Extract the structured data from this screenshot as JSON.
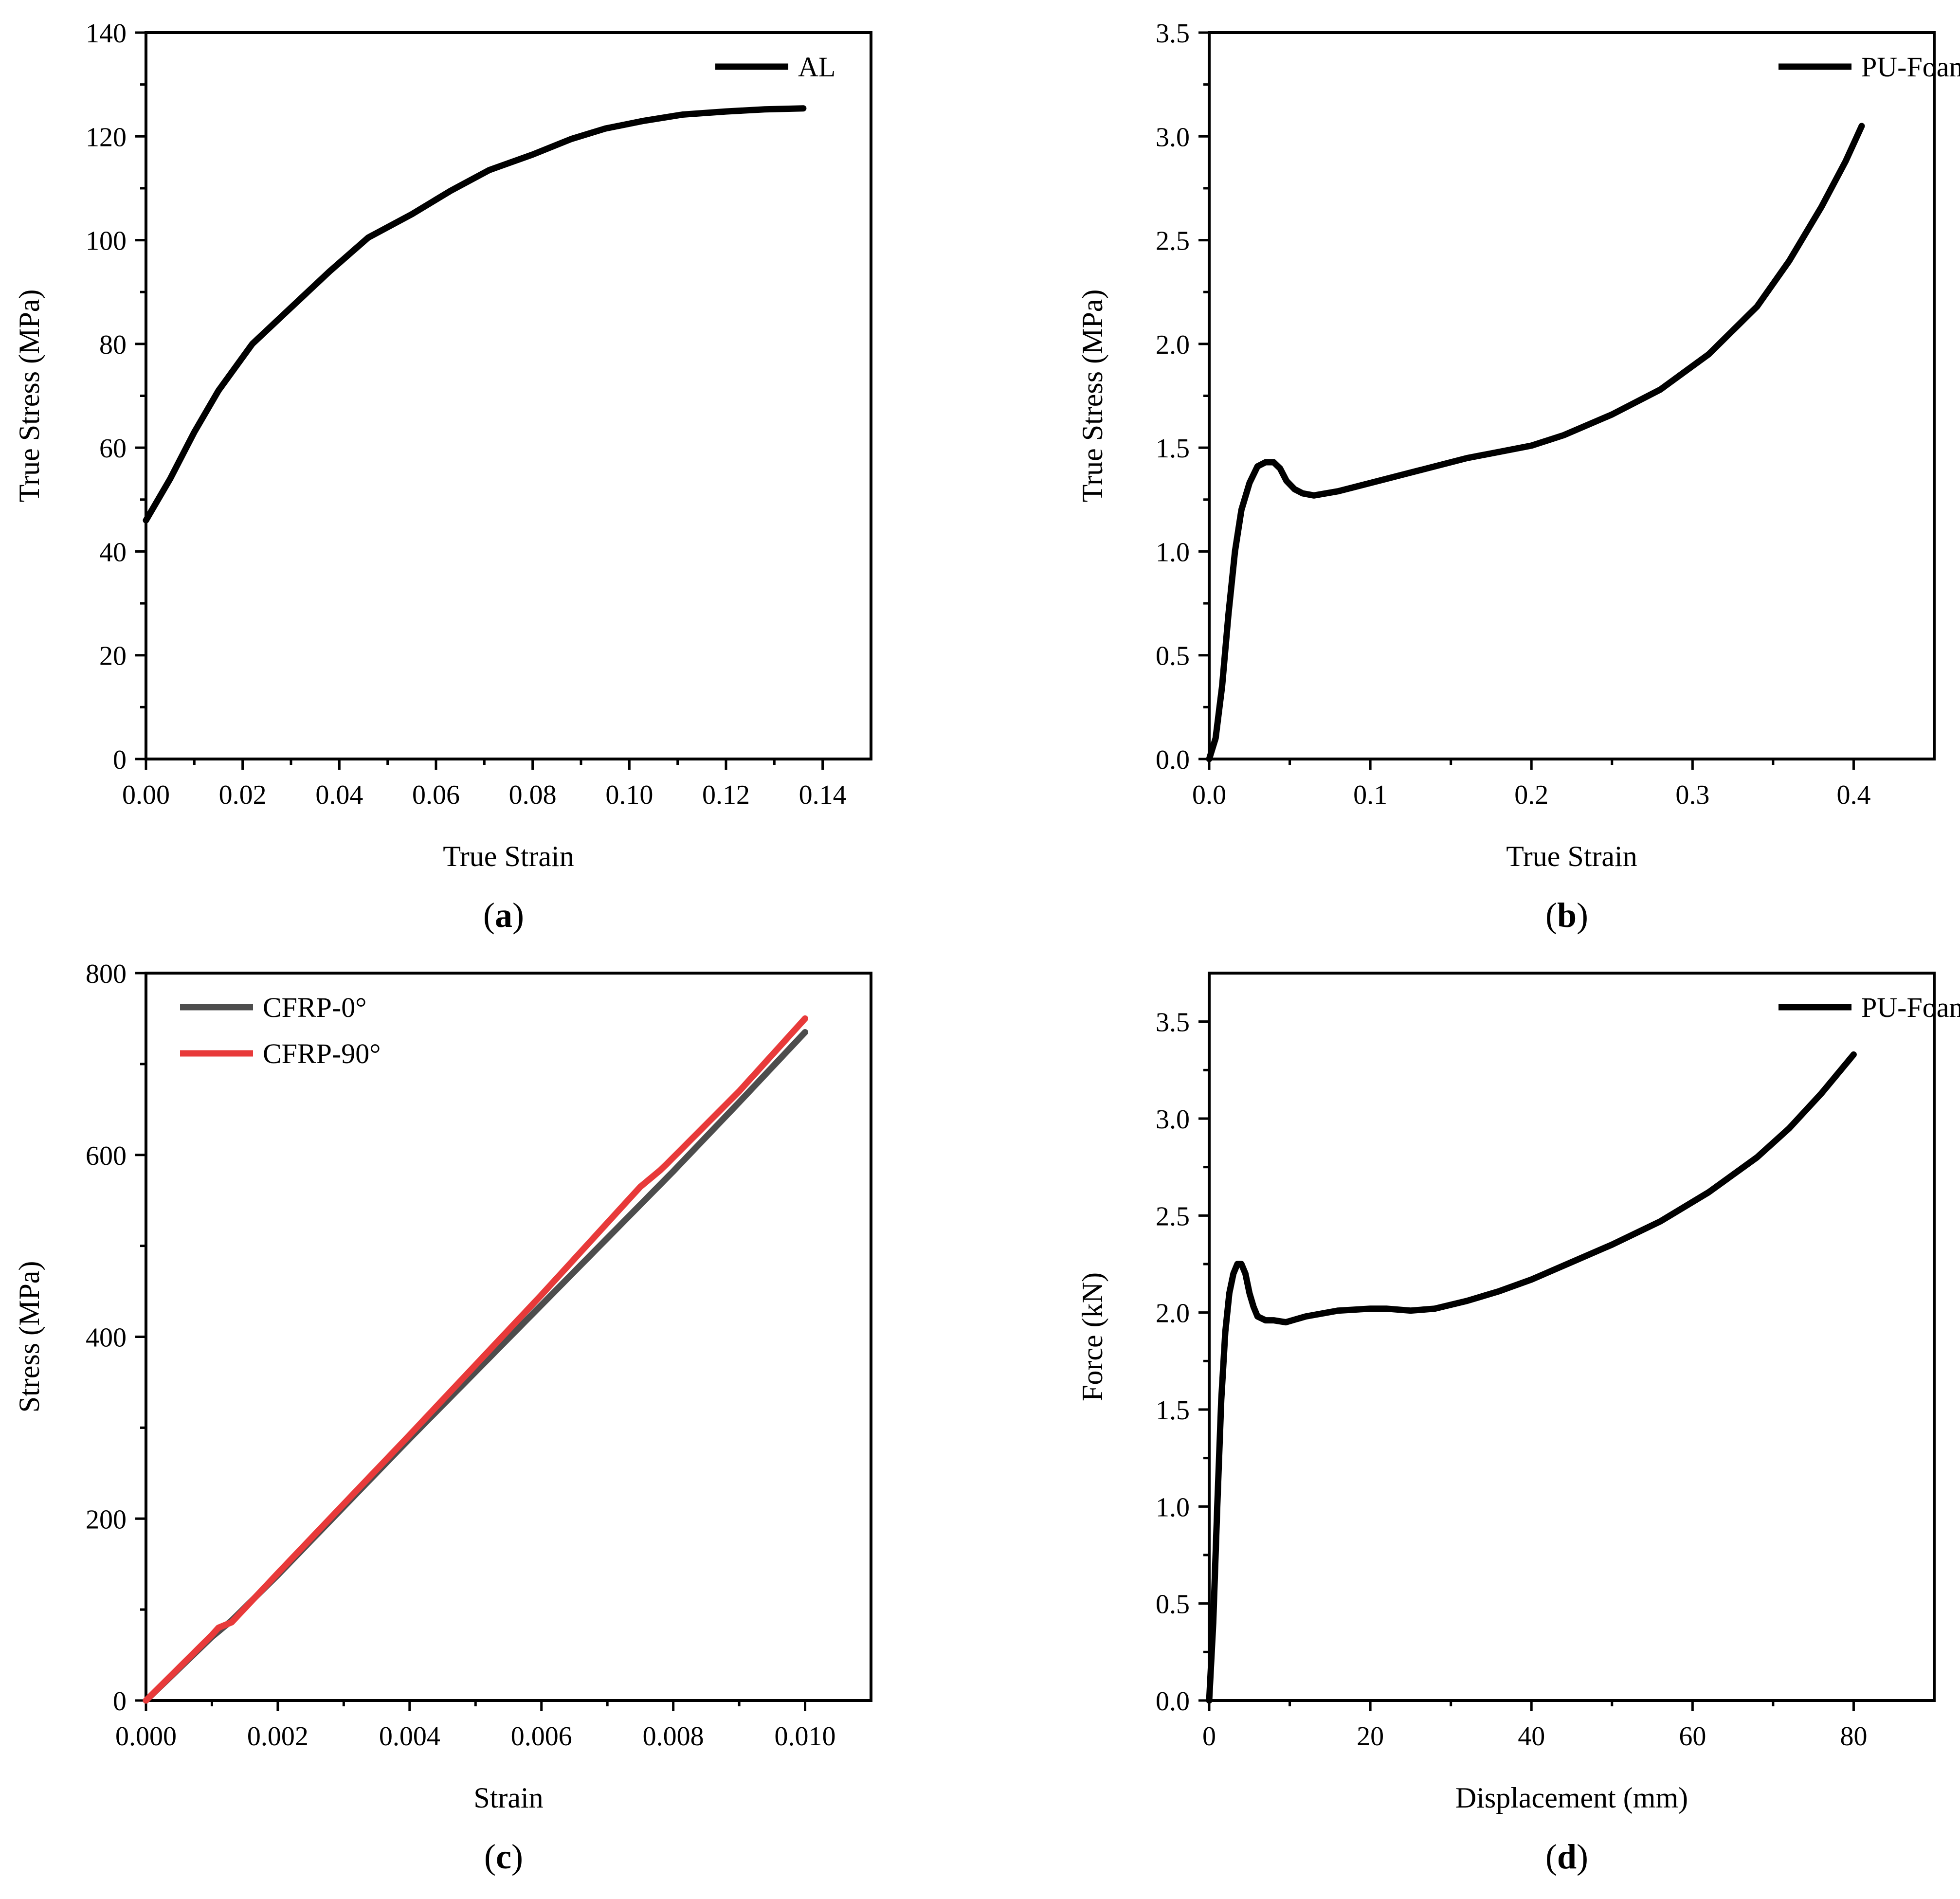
{
  "chart_data": [
    {
      "id": "a",
      "type": "line",
      "caption_letter": "a",
      "xlabel": "True Strain",
      "ylabel": "True Stress (MPa)",
      "xlim": [
        0,
        0.15
      ],
      "ylim": [
        0,
        140
      ],
      "xticks": [
        0,
        0.02,
        0.04,
        0.06,
        0.08,
        0.1,
        0.12,
        0.14
      ],
      "xtick_labels": [
        "0.00",
        "0.02",
        "0.04",
        "0.06",
        "0.08",
        "0.10",
        "0.12",
        "0.14"
      ],
      "yticks": [
        0,
        20,
        40,
        60,
        80,
        100,
        120,
        140
      ],
      "ytick_labels": [
        "0",
        "20",
        "40",
        "60",
        "80",
        "100",
        "120",
        "140"
      ],
      "legend_position": "top-right",
      "series": [
        {
          "name": "AL",
          "color": "#000000",
          "x": [
            0,
            0.005,
            0.01,
            0.015,
            0.022,
            0.03,
            0.038,
            0.046,
            0.055,
            0.063,
            0.071,
            0.08,
            0.088,
            0.095,
            0.103,
            0.111,
            0.12,
            0.128,
            0.136
          ],
          "y": [
            46,
            54,
            63,
            71,
            80,
            87,
            94,
            100.5,
            105,
            109.5,
            113.5,
            116.5,
            119.5,
            121.5,
            123,
            124.2,
            124.8,
            125.2,
            125.4
          ]
        }
      ]
    },
    {
      "id": "b",
      "type": "line",
      "caption_letter": "b",
      "xlabel": "True Strain",
      "ylabel": "True Stress (MPa)",
      "xlim": [
        0,
        0.45
      ],
      "ylim": [
        0,
        3.5
      ],
      "xticks": [
        0,
        0.1,
        0.2,
        0.3,
        0.4
      ],
      "xtick_labels": [
        "0.0",
        "0.1",
        "0.2",
        "0.3",
        "0.4"
      ],
      "yticks": [
        0,
        0.5,
        1.0,
        1.5,
        2.0,
        2.5,
        3.0,
        3.5
      ],
      "ytick_labels": [
        "0.0",
        "0.5",
        "1.0",
        "1.5",
        "2.0",
        "2.5",
        "3.0",
        "3.5"
      ],
      "legend_position": "top-right",
      "series": [
        {
          "name": "PU-Foam",
          "color": "#000000",
          "x": [
            0,
            0.004,
            0.008,
            0.012,
            0.016,
            0.02,
            0.025,
            0.03,
            0.035,
            0.04,
            0.044,
            0.048,
            0.053,
            0.058,
            0.065,
            0.08,
            0.1,
            0.13,
            0.16,
            0.18,
            0.2,
            0.22,
            0.25,
            0.28,
            0.31,
            0.34,
            0.36,
            0.38,
            0.395,
            0.405
          ],
          "y": [
            0,
            0.1,
            0.35,
            0.7,
            1.0,
            1.2,
            1.33,
            1.41,
            1.43,
            1.43,
            1.4,
            1.34,
            1.3,
            1.28,
            1.27,
            1.29,
            1.33,
            1.39,
            1.45,
            1.48,
            1.51,
            1.56,
            1.66,
            1.78,
            1.95,
            2.18,
            2.4,
            2.66,
            2.88,
            3.05
          ]
        }
      ]
    },
    {
      "id": "c",
      "type": "line",
      "caption_letter": "c",
      "xlabel": "Strain",
      "ylabel": "Stress (MPa)",
      "xlim": [
        0,
        0.011
      ],
      "ylim": [
        0,
        800
      ],
      "xticks": [
        0,
        0.002,
        0.004,
        0.006,
        0.008,
        0.01
      ],
      "xtick_labels": [
        "0.000",
        "0.002",
        "0.004",
        "0.006",
        "0.008",
        "0.010"
      ],
      "yticks": [
        0,
        200,
        400,
        600,
        800
      ],
      "ytick_labels": [
        "0",
        "200",
        "400",
        "600",
        "800"
      ],
      "legend_position": "top-left",
      "series": [
        {
          "name": "CFRP-0°",
          "color": "#4d4d4d",
          "x": [
            0,
            0.001,
            0.0013,
            0.002,
            0.004,
            0.006,
            0.008,
            0.009,
            0.01
          ],
          "y": [
            0,
            70,
            88,
            138,
            288,
            435,
            582,
            658,
            735
          ]
        },
        {
          "name": "CFRP-90°",
          "color": "#e83a3a",
          "x": [
            0,
            0.001,
            0.0011,
            0.0013,
            0.002,
            0.004,
            0.006,
            0.0075,
            0.0078,
            0.0079,
            0.009,
            0.01
          ],
          "y": [
            0,
            72,
            80,
            86,
            140,
            292,
            446,
            565,
            583,
            590,
            670,
            750
          ]
        }
      ]
    },
    {
      "id": "d",
      "type": "line",
      "caption_letter": "d",
      "xlabel": "Displacement (mm)",
      "ylabel": "Force (kN)",
      "xlim": [
        0,
        90
      ],
      "ylim": [
        0,
        3.75
      ],
      "xticks": [
        0,
        20,
        40,
        60,
        80
      ],
      "xtick_labels": [
        "0",
        "20",
        "40",
        "60",
        "80"
      ],
      "yticks": [
        0,
        0.5,
        1.0,
        1.5,
        2.0,
        2.5,
        3.0,
        3.5
      ],
      "ytick_labels": [
        "0.0",
        "0.5",
        "1.0",
        "1.5",
        "2.0",
        "2.5",
        "3.0",
        "3.5"
      ],
      "legend_position": "top-right",
      "series": [
        {
          "name": "PU-Foam",
          "color": "#000000",
          "x": [
            0,
            0.5,
            1,
            1.5,
            2,
            2.5,
            3,
            3.5,
            4,
            4.5,
            5,
            5.5,
            6,
            7,
            8,
            9.5,
            12,
            16,
            20,
            22,
            25,
            28,
            32,
            36,
            40,
            45,
            50,
            56,
            62,
            68,
            72,
            76,
            78,
            80
          ],
          "y": [
            0,
            0.4,
            1.0,
            1.55,
            1.9,
            2.1,
            2.2,
            2.25,
            2.25,
            2.2,
            2.1,
            2.03,
            1.98,
            1.96,
            1.96,
            1.95,
            1.98,
            2.01,
            2.02,
            2.02,
            2.01,
            2.02,
            2.06,
            2.11,
            2.17,
            2.26,
            2.35,
            2.47,
            2.62,
            2.8,
            2.95,
            3.13,
            3.23,
            3.33
          ]
        }
      ]
    }
  ]
}
